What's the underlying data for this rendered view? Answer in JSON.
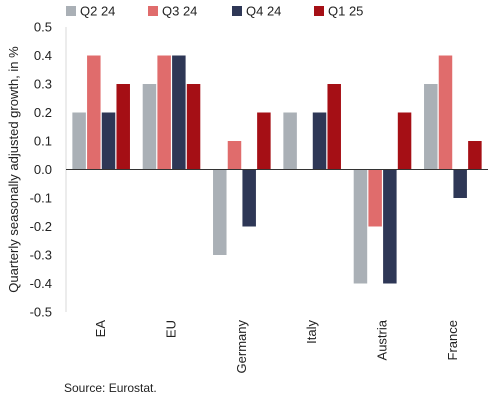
{
  "chart_data": {
    "type": "bar",
    "ylabel": "Quarterly seasonally adjusted growth, in %",
    "ylim": [
      -0.5,
      0.5
    ],
    "ytick_step": 0.1,
    "yticks": [
      "0.5",
      "0.4",
      "0.3",
      "0.2",
      "0.1",
      "0.0",
      "-0.1",
      "-0.2",
      "-0.3",
      "-0.4",
      "-0.5"
    ],
    "grid": false,
    "legend": "top",
    "categories": [
      "EA",
      "EU",
      "Germany",
      "Italy",
      "Austria",
      "France"
    ],
    "series": [
      {
        "name": "Q2 24",
        "color": "#aab0b6",
        "values": [
          0.2,
          0.3,
          -0.3,
          0.2,
          -0.4,
          0.3
        ]
      },
      {
        "name": "Q3 24",
        "color": "#e06c6c",
        "values": [
          0.4,
          0.4,
          0.1,
          0.0,
          -0.2,
          0.4
        ]
      },
      {
        "name": "Q4 24",
        "color": "#2e3756",
        "values": [
          0.2,
          0.4,
          -0.2,
          0.2,
          -0.4,
          -0.1
        ]
      },
      {
        "name": "Q1 25",
        "color": "#a50f15",
        "values": [
          0.3,
          0.3,
          0.2,
          0.3,
          0.2,
          0.1
        ]
      }
    ]
  },
  "source": "Source: Eurostat."
}
